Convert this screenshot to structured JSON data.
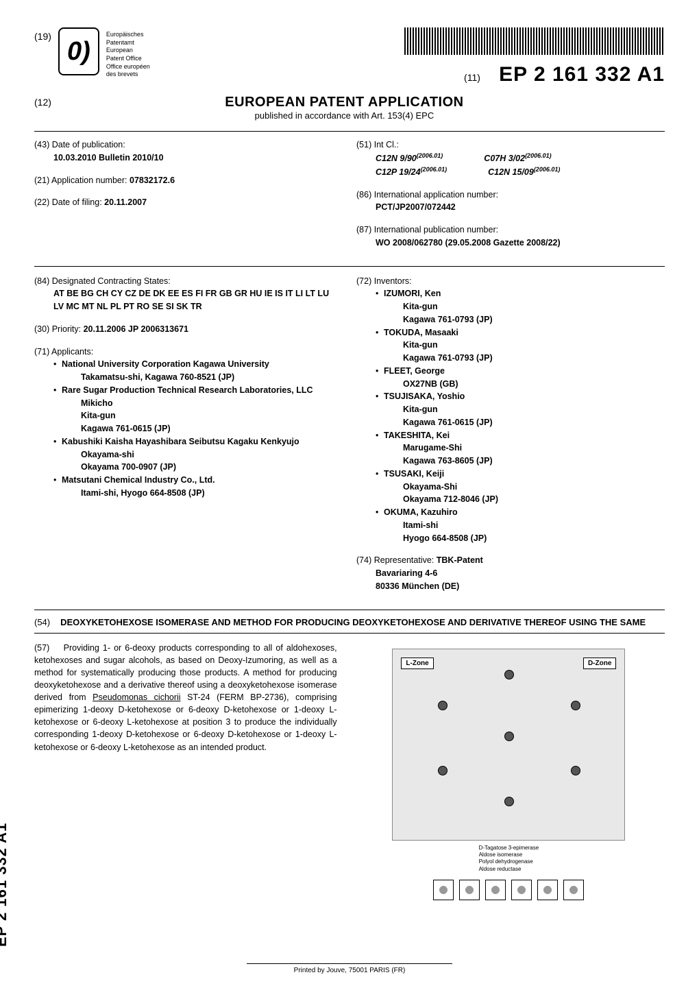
{
  "header": {
    "num19": "(19)",
    "office_names": [
      "Europäisches",
      "Patentamt",
      "European",
      "Patent Office",
      "Office européen",
      "des brevets"
    ],
    "num11": "(11)",
    "pub_number": "EP 2 161 332 A1"
  },
  "title_block": {
    "num12": "(12)",
    "main_title": "EUROPEAN PATENT APPLICATION",
    "subtitle": "published in accordance with Art. 153(4) EPC"
  },
  "biblio_top_left": {
    "f43": {
      "code": "(43)",
      "label": "Date of publication:",
      "value": "10.03.2010  Bulletin 2010/10"
    },
    "f21": {
      "code": "(21)",
      "label": "Application number:",
      "value": "07832172.6"
    },
    "f22": {
      "code": "(22)",
      "label": "Date of filing:",
      "value": "20.11.2007"
    }
  },
  "biblio_top_right": {
    "f51": {
      "code": "(51)",
      "label": "Int Cl.:"
    },
    "ipc": [
      {
        "code": "C12N 9/90",
        "ver": "(2006.01)"
      },
      {
        "code": "C07H 3/02",
        "ver": "(2006.01)"
      },
      {
        "code": "C12P 19/24",
        "ver": "(2006.01)"
      },
      {
        "code": "C12N 15/09",
        "ver": "(2006.01)"
      }
    ],
    "f86": {
      "code": "(86)",
      "label": "International application number:",
      "value": "PCT/JP2007/072442"
    },
    "f87": {
      "code": "(87)",
      "label": "International publication number:",
      "value": "WO 2008/062780 (29.05.2008 Gazette 2008/22)"
    }
  },
  "biblio_bottom_left": {
    "f84": {
      "code": "(84)",
      "label": "Designated Contracting States:",
      "value": "AT BE BG CH CY CZ DE DK EE ES FI FR GB GR HU IE IS IT LI LT LU LV MC MT NL PL PT RO SE SI SK TR"
    },
    "f30": {
      "code": "(30)",
      "label": "Priority:",
      "value": "20.11.2006  JP 2006313671"
    },
    "f71": {
      "code": "(71)",
      "label": "Applicants:"
    },
    "applicants": [
      {
        "name": "National University Corporation Kagawa University",
        "addr1": "Takamatsu-shi, Kagawa 760-8521 (JP)"
      },
      {
        "name": "Rare Sugar Production Technical Research Laboratories, LLC",
        "addr1": "Mikicho",
        "addr2": "Kita-gun",
        "addr3": "Kagawa 761-0615 (JP)"
      },
      {
        "name": "Kabushiki Kaisha Hayashibara Seibutsu Kagaku Kenkyujo",
        "addr1": "Okayama-shi",
        "addr2": "Okayama 700-0907 (JP)"
      },
      {
        "name": "Matsutani Chemical Industry Co., Ltd.",
        "addr1": "Itami-shi, Hyogo 664-8508 (JP)"
      }
    ]
  },
  "biblio_bottom_right": {
    "f72": {
      "code": "(72)",
      "label": "Inventors:"
    },
    "inventors": [
      {
        "name": "IZUMORI, Ken",
        "addr1": "Kita-gun",
        "addr2": "Kagawa 761-0793 (JP)"
      },
      {
        "name": "TOKUDA, Masaaki",
        "addr1": "Kita-gun",
        "addr2": "Kagawa 761-0793 (JP)"
      },
      {
        "name": "FLEET, George",
        "addr1": "OX27NB (GB)"
      },
      {
        "name": "TSUJISAKA, Yoshio",
        "addr1": "Kita-gun",
        "addr2": "Kagawa 761-0615 (JP)"
      },
      {
        "name": "TAKESHITA, Kei",
        "addr1": "Marugame-Shi",
        "addr2": "Kagawa 763-8605 (JP)"
      },
      {
        "name": "TSUSAKI, Keiji",
        "addr1": "Okayama-Shi",
        "addr2": "Okayama 712-8046 (JP)"
      },
      {
        "name": "OKUMA, Kazuhiro",
        "addr1": "Itami-shi",
        "addr2": "Hyogo 664-8508 (JP)"
      }
    ],
    "f74": {
      "code": "(74)",
      "label": "Representative:",
      "name": "TBK-Patent",
      "addr1": "Bavariaring 4-6",
      "addr2": "80336 München (DE)"
    }
  },
  "invention": {
    "num54": "(54)",
    "title": "DEOXYKETOHEXOSE ISOMERASE AND METHOD FOR PRODUCING DEOXYKETOHEXOSE AND DERIVATIVE THEREOF USING THE SAME"
  },
  "abstract": {
    "num57": "(57)",
    "text_part1": "Providing 1- or 6-deoxy products corresponding to all of aldohexoses, ketohexoses and sugar alcohols, as based on Deoxy-Izumoring, as well as a method for systematically producing those products. A method for producing deoxyketohexose and a derivative thereof using a deoxyketohexose isomerase derived from ",
    "organism": "Pseudomonas cichorii",
    "text_part2": " ST-24 (FERM BP-2736), comprising epimerizing 1-deoxy D-ketohexose or 6-deoxy D-ketohexose or 1-deoxy L-ketohexose or 6-deoxy L-ketohexose at position 3 to produce the individually corresponding 1-deoxy D-ketohexose or 6-deoxy D-ketohexose or 1-deoxy L-ketohexose or 6-deoxy L-ketohexose as an intended product."
  },
  "figure": {
    "lzone": "L-Zone",
    "dzone": "D-Zone",
    "legend": [
      "D-Tagatose 3-epimerase",
      "Aldose isomerase",
      "Polyol dehydrogenase",
      "Aldose reductase"
    ]
  },
  "side_label": "EP 2 161 332 A1",
  "footer": "Printed by Jouve, 75001 PARIS (FR)"
}
